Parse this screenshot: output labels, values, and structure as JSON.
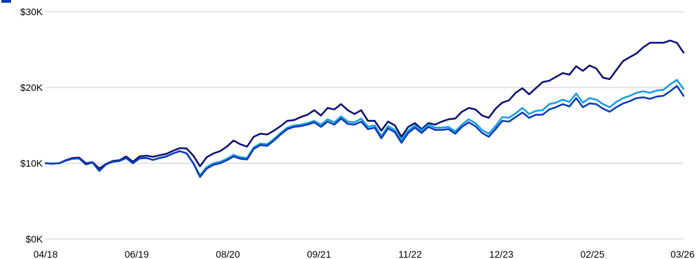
{
  "chart_data": {
    "type": "line",
    "title": "",
    "xlabel": "",
    "ylabel": "",
    "x_tick_labels": [
      "04/18",
      "06/19",
      "08/20",
      "09/21",
      "11/22",
      "12/23",
      "02/25",
      "03/26"
    ],
    "y_tick_labels": [
      "$0K",
      "$10K",
      "$20K",
      "$30K"
    ],
    "y_ticks": [
      0,
      10000,
      20000,
      30000
    ],
    "ylim": [
      0,
      30000
    ],
    "x_period_count": 96,
    "grid": true,
    "legend_position": "top-left",
    "series": [
      {
        "color": "#0d1470",
        "points": [
          [
            0,
            10000
          ],
          [
            1,
            9950
          ],
          [
            2,
            10000
          ],
          [
            3,
            10400
          ],
          [
            4,
            10700
          ],
          [
            5,
            10750
          ],
          [
            6,
            10000
          ],
          [
            7,
            10150
          ],
          [
            8,
            9300
          ],
          [
            9,
            9900
          ],
          [
            10,
            10300
          ],
          [
            11,
            10400
          ],
          [
            12,
            10900
          ],
          [
            13,
            10200
          ],
          [
            14,
            10900
          ],
          [
            15,
            11000
          ],
          [
            16,
            10850
          ],
          [
            17,
            11050
          ],
          [
            18,
            11250
          ],
          [
            19,
            11650
          ],
          [
            20,
            12000
          ],
          [
            21,
            11950
          ],
          [
            22,
            11000
          ],
          [
            23,
            9600
          ],
          [
            24,
            10800
          ],
          [
            25,
            11300
          ],
          [
            26,
            11600
          ],
          [
            27,
            12200
          ],
          [
            28,
            13000
          ],
          [
            29,
            12500
          ],
          [
            30,
            12200
          ],
          [
            31,
            13500
          ],
          [
            32,
            13900
          ],
          [
            33,
            13800
          ],
          [
            34,
            14300
          ],
          [
            35,
            14900
          ],
          [
            36,
            15600
          ],
          [
            37,
            15700
          ],
          [
            38,
            16100
          ],
          [
            39,
            16400
          ],
          [
            40,
            17000
          ],
          [
            41,
            16300
          ],
          [
            42,
            17300
          ],
          [
            43,
            17100
          ],
          [
            44,
            17800
          ],
          [
            45,
            17000
          ],
          [
            46,
            16500
          ],
          [
            47,
            17000
          ],
          [
            48,
            15600
          ],
          [
            49,
            15600
          ],
          [
            50,
            14300
          ],
          [
            51,
            15500
          ],
          [
            52,
            15000
          ],
          [
            53,
            13500
          ],
          [
            54,
            14800
          ],
          [
            55,
            15300
          ],
          [
            56,
            14500
          ],
          [
            57,
            15300
          ],
          [
            58,
            15100
          ],
          [
            59,
            15500
          ],
          [
            60,
            15800
          ],
          [
            61,
            15900
          ],
          [
            62,
            16800
          ],
          [
            63,
            17300
          ],
          [
            64,
            17100
          ],
          [
            65,
            16300
          ],
          [
            66,
            16000
          ],
          [
            67,
            17200
          ],
          [
            68,
            18000
          ],
          [
            69,
            18300
          ],
          [
            70,
            19300
          ],
          [
            71,
            19900
          ],
          [
            72,
            19100
          ],
          [
            73,
            19900
          ],
          [
            74,
            20700
          ],
          [
            75,
            20900
          ],
          [
            76,
            21400
          ],
          [
            77,
            21900
          ],
          [
            78,
            21700
          ],
          [
            79,
            22800
          ],
          [
            80,
            22200
          ],
          [
            81,
            22900
          ],
          [
            82,
            22500
          ],
          [
            83,
            21300
          ],
          [
            84,
            21100
          ],
          [
            85,
            22300
          ],
          [
            86,
            23500
          ],
          [
            87,
            24000
          ],
          [
            88,
            24500
          ],
          [
            89,
            25300
          ],
          [
            90,
            25900
          ],
          [
            91,
            25900
          ],
          [
            92,
            25900
          ],
          [
            93,
            26200
          ],
          [
            94,
            25900
          ],
          [
            95,
            24600
          ]
        ]
      },
      {
        "color": "#1a9ce0",
        "points": [
          [
            0,
            10000
          ],
          [
            1,
            9950
          ],
          [
            2,
            10000
          ],
          [
            3,
            10350
          ],
          [
            4,
            10600
          ],
          [
            5,
            10650
          ],
          [
            6,
            9850
          ],
          [
            7,
            10100
          ],
          [
            8,
            9000
          ],
          [
            9,
            9850
          ],
          [
            10,
            10200
          ],
          [
            11,
            10300
          ],
          [
            12,
            10700
          ],
          [
            13,
            10000
          ],
          [
            14,
            10650
          ],
          [
            15,
            10700
          ],
          [
            16,
            10450
          ],
          [
            17,
            10700
          ],
          [
            18,
            10900
          ],
          [
            19,
            11300
          ],
          [
            20,
            11600
          ],
          [
            21,
            11300
          ],
          [
            22,
            10000
          ],
          [
            23,
            8400
          ],
          [
            24,
            9500
          ],
          [
            25,
            10000
          ],
          [
            26,
            10200
          ],
          [
            27,
            10600
          ],
          [
            28,
            11100
          ],
          [
            29,
            10800
          ],
          [
            30,
            10700
          ],
          [
            31,
            12100
          ],
          [
            32,
            12600
          ],
          [
            33,
            12500
          ],
          [
            34,
            13200
          ],
          [
            35,
            14000
          ],
          [
            36,
            14700
          ],
          [
            37,
            15000
          ],
          [
            38,
            15100
          ],
          [
            39,
            15300
          ],
          [
            40,
            15600
          ],
          [
            41,
            15100
          ],
          [
            42,
            15800
          ],
          [
            43,
            15400
          ],
          [
            44,
            16200
          ],
          [
            45,
            15500
          ],
          [
            46,
            15400
          ],
          [
            47,
            15900
          ],
          [
            48,
            14800
          ],
          [
            49,
            15000
          ],
          [
            50,
            13600
          ],
          [
            51,
            14900
          ],
          [
            52,
            14400
          ],
          [
            53,
            13100
          ],
          [
            54,
            14300
          ],
          [
            55,
            15000
          ],
          [
            56,
            14300
          ],
          [
            57,
            15100
          ],
          [
            58,
            14700
          ],
          [
            59,
            14700
          ],
          [
            60,
            14800
          ],
          [
            61,
            14200
          ],
          [
            62,
            15100
          ],
          [
            63,
            15800
          ],
          [
            64,
            15300
          ],
          [
            65,
            14400
          ],
          [
            66,
            13900
          ],
          [
            67,
            14900
          ],
          [
            68,
            16100
          ],
          [
            69,
            16000
          ],
          [
            70,
            16600
          ],
          [
            71,
            17300
          ],
          [
            72,
            16500
          ],
          [
            73,
            16900
          ],
          [
            74,
            17000
          ],
          [
            75,
            17800
          ],
          [
            76,
            18000
          ],
          [
            77,
            18400
          ],
          [
            78,
            18100
          ],
          [
            79,
            19200
          ],
          [
            80,
            18000
          ],
          [
            81,
            18600
          ],
          [
            82,
            18400
          ],
          [
            83,
            17800
          ],
          [
            84,
            17400
          ],
          [
            85,
            18100
          ],
          [
            86,
            18600
          ],
          [
            87,
            18900
          ],
          [
            88,
            19300
          ],
          [
            89,
            19500
          ],
          [
            90,
            19300
          ],
          [
            91,
            19600
          ],
          [
            92,
            19700
          ],
          [
            93,
            20400
          ],
          [
            94,
            21000
          ],
          [
            95,
            19800
          ]
        ]
      },
      {
        "color": "#0c3cb4",
        "points": [
          [
            0,
            10000
          ],
          [
            1,
            9950
          ],
          [
            2,
            10000
          ],
          [
            3,
            10350
          ],
          [
            4,
            10600
          ],
          [
            5,
            10650
          ],
          [
            6,
            9850
          ],
          [
            7,
            10100
          ],
          [
            8,
            9000
          ],
          [
            9,
            9850
          ],
          [
            10,
            10200
          ],
          [
            11,
            10300
          ],
          [
            12,
            10700
          ],
          [
            13,
            10000
          ],
          [
            14,
            10650
          ],
          [
            15,
            10700
          ],
          [
            16,
            10450
          ],
          [
            17,
            10700
          ],
          [
            18,
            10900
          ],
          [
            19,
            11300
          ],
          [
            20,
            11600
          ],
          [
            21,
            11300
          ],
          [
            22,
            10000
          ],
          [
            23,
            8200
          ],
          [
            24,
            9300
          ],
          [
            25,
            9800
          ],
          [
            26,
            10000
          ],
          [
            27,
            10400
          ],
          [
            28,
            10900
          ],
          [
            29,
            10600
          ],
          [
            30,
            10500
          ],
          [
            31,
            11900
          ],
          [
            32,
            12400
          ],
          [
            33,
            12300
          ],
          [
            34,
            13000
          ],
          [
            35,
            13800
          ],
          [
            36,
            14500
          ],
          [
            37,
            14800
          ],
          [
            38,
            14900
          ],
          [
            39,
            15100
          ],
          [
            40,
            15400
          ],
          [
            41,
            14800
          ],
          [
            42,
            15500
          ],
          [
            43,
            15100
          ],
          [
            44,
            15900
          ],
          [
            45,
            15200
          ],
          [
            46,
            15100
          ],
          [
            47,
            15500
          ],
          [
            48,
            14500
          ],
          [
            49,
            14700
          ],
          [
            50,
            13300
          ],
          [
            51,
            14600
          ],
          [
            52,
            14100
          ],
          [
            53,
            12700
          ],
          [
            54,
            14000
          ],
          [
            55,
            14700
          ],
          [
            56,
            14000
          ],
          [
            57,
            14800
          ],
          [
            58,
            14400
          ],
          [
            59,
            14400
          ],
          [
            60,
            14500
          ],
          [
            61,
            13900
          ],
          [
            62,
            14800
          ],
          [
            63,
            15400
          ],
          [
            64,
            14900
          ],
          [
            65,
            14000
          ],
          [
            66,
            13500
          ],
          [
            67,
            14500
          ],
          [
            68,
            15600
          ],
          [
            69,
            15500
          ],
          [
            70,
            16100
          ],
          [
            71,
            16700
          ],
          [
            72,
            16000
          ],
          [
            73,
            16400
          ],
          [
            74,
            16400
          ],
          [
            75,
            17100
          ],
          [
            76,
            17400
          ],
          [
            77,
            17800
          ],
          [
            78,
            17500
          ],
          [
            79,
            18600
          ],
          [
            80,
            17400
          ],
          [
            81,
            17900
          ],
          [
            82,
            17800
          ],
          [
            83,
            17200
          ],
          [
            84,
            16800
          ],
          [
            85,
            17400
          ],
          [
            86,
            17900
          ],
          [
            87,
            18200
          ],
          [
            88,
            18600
          ],
          [
            89,
            18700
          ],
          [
            90,
            18500
          ],
          [
            91,
            18800
          ],
          [
            92,
            18900
          ],
          [
            93,
            19500
          ],
          [
            94,
            20200
          ],
          [
            95,
            18900
          ]
        ]
      }
    ]
  }
}
